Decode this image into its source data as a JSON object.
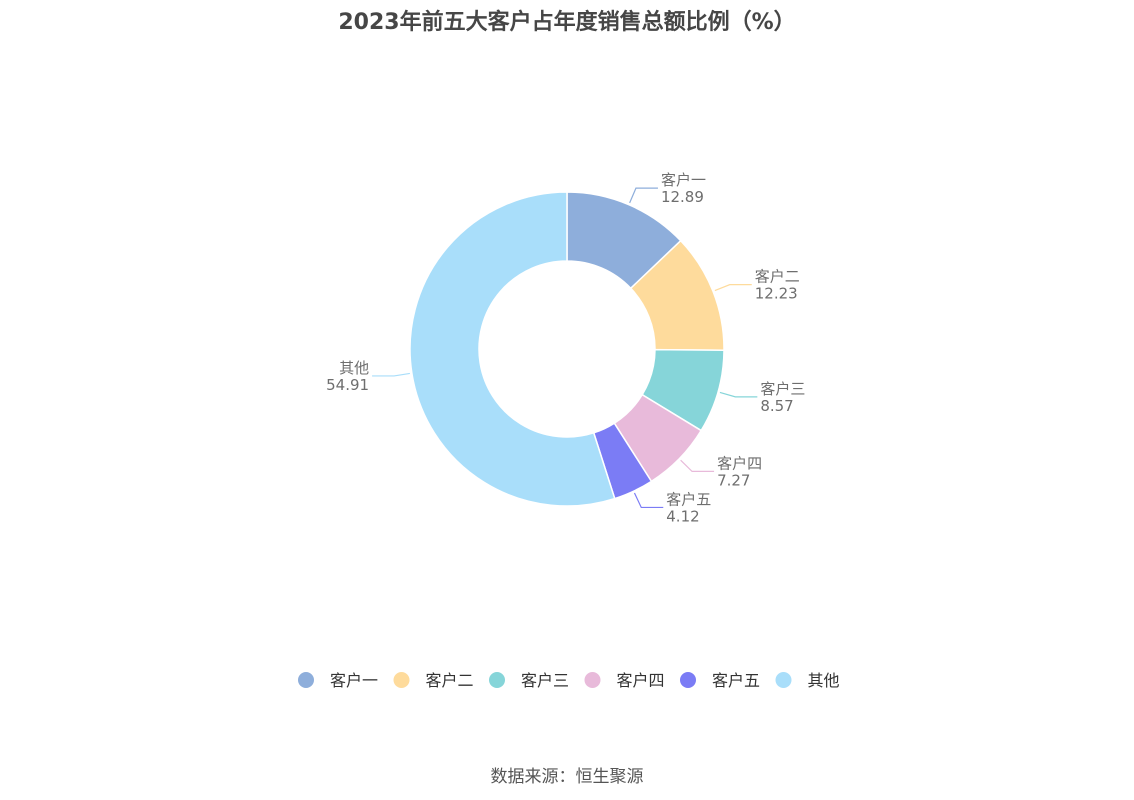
{
  "title": "2023年前五大客户占年度销售总额比例（%）",
  "source": "数据来源：恒生聚源",
  "chart_data": {
    "type": "pie",
    "variant": "donut",
    "title": "2023年前五大客户占年度销售总额比例（%）",
    "legend_position": "bottom",
    "categories": [
      "客户一",
      "客户二",
      "客户三",
      "客户四",
      "客户五",
      "其他"
    ],
    "values": [
      12.89,
      12.23,
      8.57,
      7.27,
      4.12,
      54.91
    ],
    "value_labels": [
      "12.89",
      "12.23",
      "8.57",
      "7.27",
      "4.12",
      "54.91"
    ],
    "colors": [
      "#8eaedb",
      "#fedb9c",
      "#86d5d9",
      "#e8bada",
      "#7b7cf5",
      "#a9defa"
    ]
  }
}
